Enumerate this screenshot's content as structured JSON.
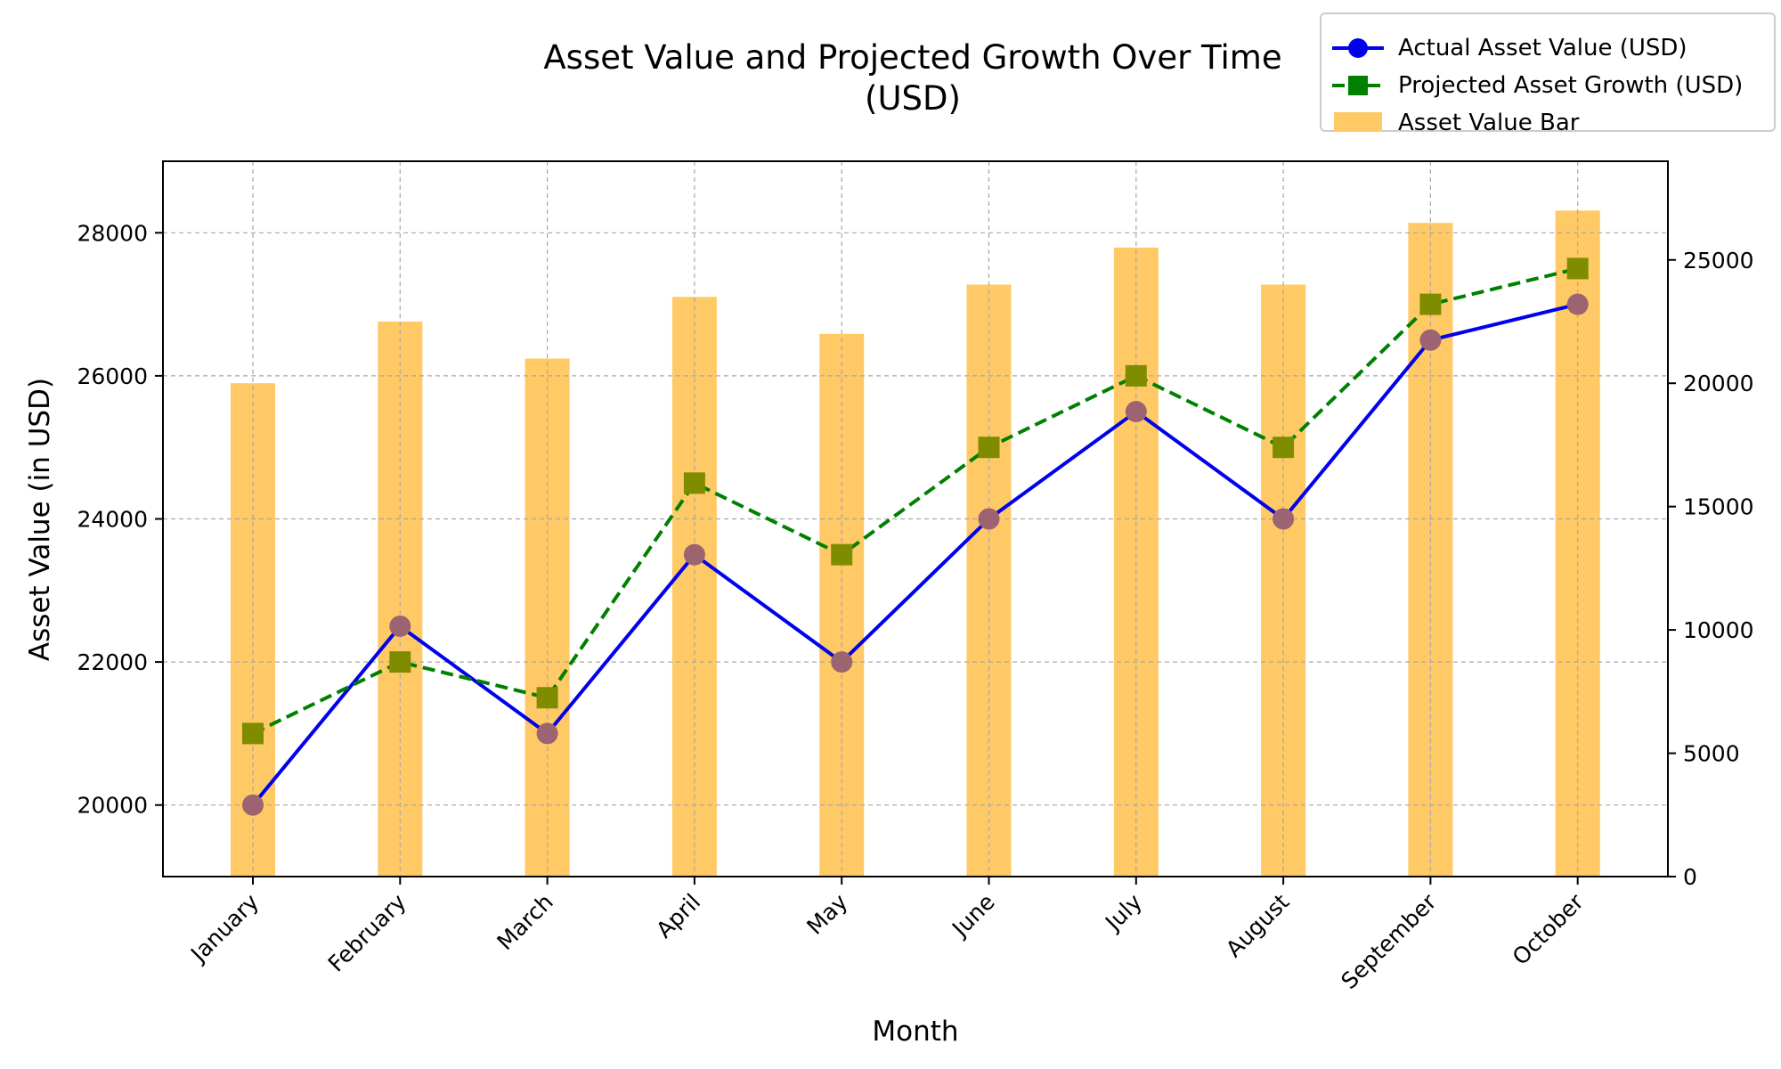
{
  "chart_data": {
    "type": "bar+line",
    "title_lines": [
      "Asset Value and Projected Growth Over Time",
      "(USD)"
    ],
    "xlabel": "Month",
    "ylabel": "Asset Value (in USD)",
    "categories": [
      "January",
      "February",
      "March",
      "April",
      "May",
      "June",
      "July",
      "August",
      "September",
      "October"
    ],
    "left_axis": {
      "ylim": [
        19000,
        29000
      ],
      "ticks": [
        20000,
        22000,
        24000,
        26000,
        28000
      ]
    },
    "right_axis": {
      "ylim": [
        0,
        29000
      ],
      "ticks": [
        0,
        5000,
        10000,
        15000,
        20000,
        25000
      ]
    },
    "grid": true,
    "legend_placement": "top-right",
    "series": [
      {
        "name": "Actual Asset Value (USD)",
        "kind": "line",
        "axis": "left",
        "marker": "circle",
        "line_color": "#0000ee",
        "marker_color": "#9b6470",
        "values": [
          20000,
          22500,
          21000,
          23500,
          22000,
          24000,
          25500,
          24000,
          26500,
          27000
        ]
      },
      {
        "name": "Projected Asset Growth (USD)",
        "kind": "line",
        "axis": "left",
        "marker": "square",
        "line_style": "dashed",
        "line_color": "#008000",
        "marker_color": "#808c00",
        "values": [
          21000,
          22000,
          21500,
          24500,
          23500,
          25000,
          26000,
          25000,
          27000,
          27500
        ]
      },
      {
        "name": "Asset Value Bar",
        "kind": "bar",
        "axis": "right",
        "color": "#ffc966",
        "values": [
          20000,
          22500,
          21000,
          23500,
          22000,
          24000,
          25500,
          24000,
          26500,
          27000
        ]
      }
    ]
  }
}
